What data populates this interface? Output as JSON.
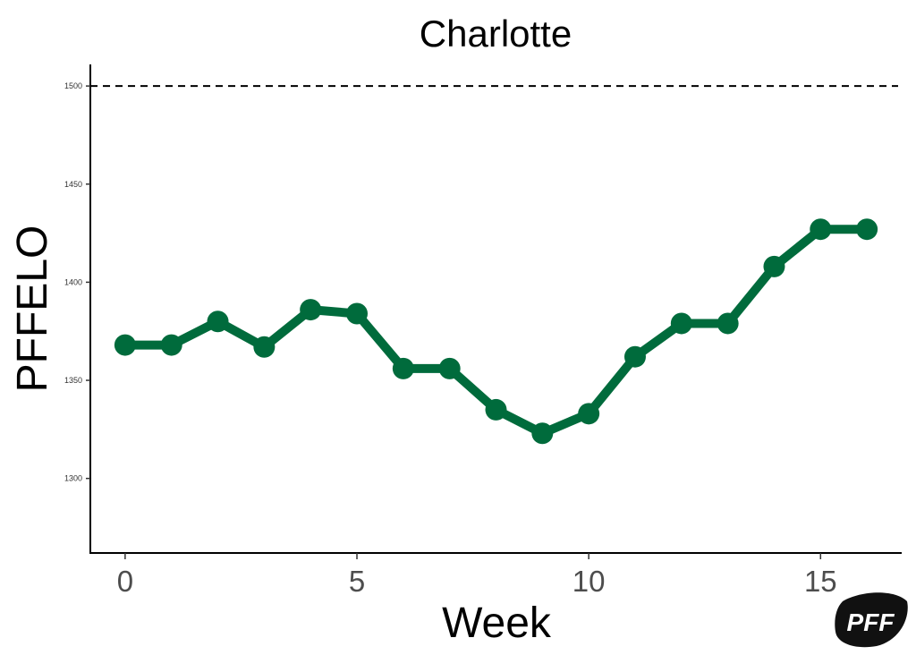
{
  "chart_data": {
    "type": "line",
    "title": "Charlotte",
    "xlabel": "Week",
    "ylabel": "PFFELO",
    "x": [
      0,
      1,
      2,
      3,
      4,
      5,
      6,
      7,
      8,
      9,
      10,
      11,
      12,
      13,
      14,
      15,
      16
    ],
    "series": [
      {
        "values": [
          1368,
          1368,
          1380,
          1367,
          1386,
          1384,
          1356,
          1356,
          1335,
          1323,
          1333,
          1362,
          1379,
          1379,
          1408,
          1427,
          1427
        ]
      }
    ],
    "xticks": [
      "0",
      "5",
      "10",
      "15"
    ],
    "yticks": [
      "1300",
      "1350",
      "1400",
      "1450",
      "1500"
    ],
    "xlim": [
      -0.75,
      16.75
    ],
    "ylim": [
      1262,
      1511
    ],
    "reference_line": {
      "y": 1500,
      "style": "dashed"
    },
    "grid": false,
    "line_color": "#006b3c"
  },
  "logo": {
    "text": "PFF"
  }
}
